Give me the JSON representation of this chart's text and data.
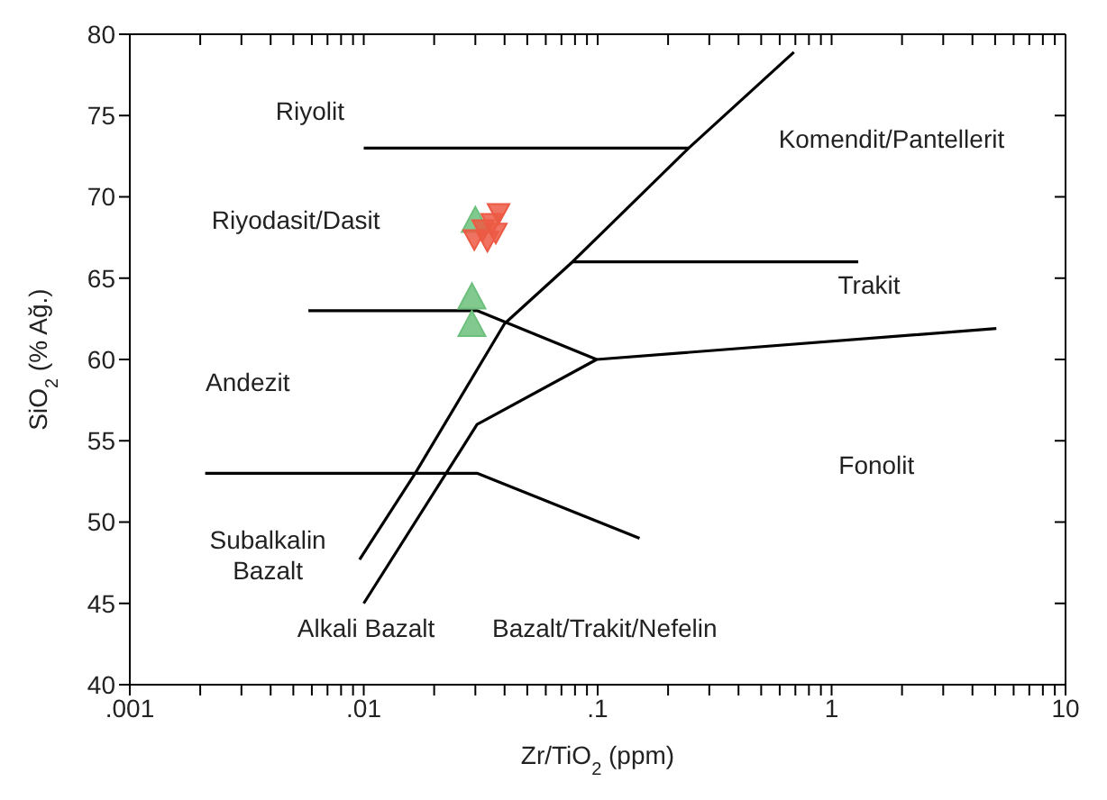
{
  "chart_data": {
    "type": "scatter",
    "xlabel": "Zr/TiO$_{2}$ (ppm)",
    "ylabel": "SiO$_{2}$ (% Ağ.)",
    "log": "x",
    "xlim": [
      0.001,
      10
    ],
    "ylim": [
      40,
      80
    ],
    "xticks": [
      {
        "value": 0.001,
        "label": ".001"
      },
      {
        "value": 0.002,
        "label": null
      },
      {
        "value": 0.003,
        "label": null
      },
      {
        "value": 0.004,
        "label": null
      },
      {
        "value": 0.005,
        "label": null
      },
      {
        "value": 0.006,
        "label": null
      },
      {
        "value": 0.007,
        "label": null
      },
      {
        "value": 0.008,
        "label": null
      },
      {
        "value": 0.009,
        "label": null
      },
      {
        "value": 0.01,
        "label": ".01"
      },
      {
        "value": 0.02,
        "label": null
      },
      {
        "value": 0.03,
        "label": null
      },
      {
        "value": 0.04,
        "label": null
      },
      {
        "value": 0.05,
        "label": null
      },
      {
        "value": 0.06,
        "label": null
      },
      {
        "value": 0.07,
        "label": null
      },
      {
        "value": 0.08,
        "label": null
      },
      {
        "value": 0.09,
        "label": null
      },
      {
        "value": 0.1,
        "label": ".1"
      },
      {
        "value": 0.2,
        "label": null
      },
      {
        "value": 0.3,
        "label": null
      },
      {
        "value": 0.4,
        "label": null
      },
      {
        "value": 0.5,
        "label": null
      },
      {
        "value": 0.6,
        "label": null
      },
      {
        "value": 0.7,
        "label": null
      },
      {
        "value": 0.8,
        "label": null
      },
      {
        "value": 0.9,
        "label": null
      },
      {
        "value": 1,
        "label": "1"
      },
      {
        "value": 2,
        "label": null
      },
      {
        "value": 3,
        "label": null
      },
      {
        "value": 4,
        "label": null
      },
      {
        "value": 5,
        "label": null
      },
      {
        "value": 6,
        "label": null
      },
      {
        "value": 7,
        "label": null
      },
      {
        "value": 8,
        "label": null
      },
      {
        "value": 9,
        "label": null
      },
      {
        "value": 10,
        "label": "10"
      }
    ],
    "yticks": [
      40,
      45,
      50,
      55,
      60,
      65,
      70,
      75,
      80
    ],
    "grid": false,
    "legend": false,
    "series": [
      {
        "type": "line",
        "color": "#000000",
        "marker": "none",
        "x": [
          0.69,
          0.245,
          0.078,
          0.04,
          0.0166,
          0.0096
        ],
        "values": [
          78.9,
          73,
          66,
          62.2,
          53,
          47.7
        ]
      },
      {
        "type": "line",
        "color": "#000000",
        "marker": "none",
        "x": [
          0.01,
          0.0225,
          0.0305,
          0.099,
          5.06
        ],
        "values": [
          45,
          53,
          56,
          60,
          61.9
        ]
      },
      {
        "type": "line",
        "color": "#000000",
        "marker": "none",
        "x": [
          0.01,
          0.245
        ],
        "values": [
          73,
          73
        ]
      },
      {
        "type": "line",
        "color": "#000000",
        "marker": "none",
        "x": [
          0.078,
          1.3
        ],
        "values": [
          66,
          66
        ]
      },
      {
        "type": "line",
        "color": "#000000",
        "marker": "none",
        "x": [
          0.0058,
          0.0305,
          0.099
        ],
        "values": [
          63,
          63,
          60
        ]
      },
      {
        "type": "line",
        "color": "#000000",
        "marker": "none",
        "x": [
          0.0021,
          0.0305,
          0.151
        ],
        "values": [
          53,
          53,
          49
        ]
      },
      {
        "type": "scatter",
        "color": "#6cc07c",
        "marker": "triangle",
        "x": [
          0.03,
          0.029,
          0.029
        ],
        "values": [
          68.5,
          63.8,
          62.1
        ]
      },
      {
        "type": "scatter",
        "color": "#ec5a44",
        "marker": "triangle-down",
        "x": [
          0.0377,
          0.0297,
          0.0338,
          0.0324,
          0.0367,
          0.0354
        ],
        "values": [
          69,
          67.4,
          67.3,
          68,
          67.8,
          68.4
        ]
      }
    ],
    "annotations": [
      "Riyolit",
      "Komendit/Pantellerit",
      "Riyodasit/Dasit",
      "Trakit",
      "Andezit",
      "Fonolit",
      "Subalkalin\nBazalt",
      "Alkali Bazalt",
      "Bazalt/Trakit/Nefelin"
    ]
  }
}
